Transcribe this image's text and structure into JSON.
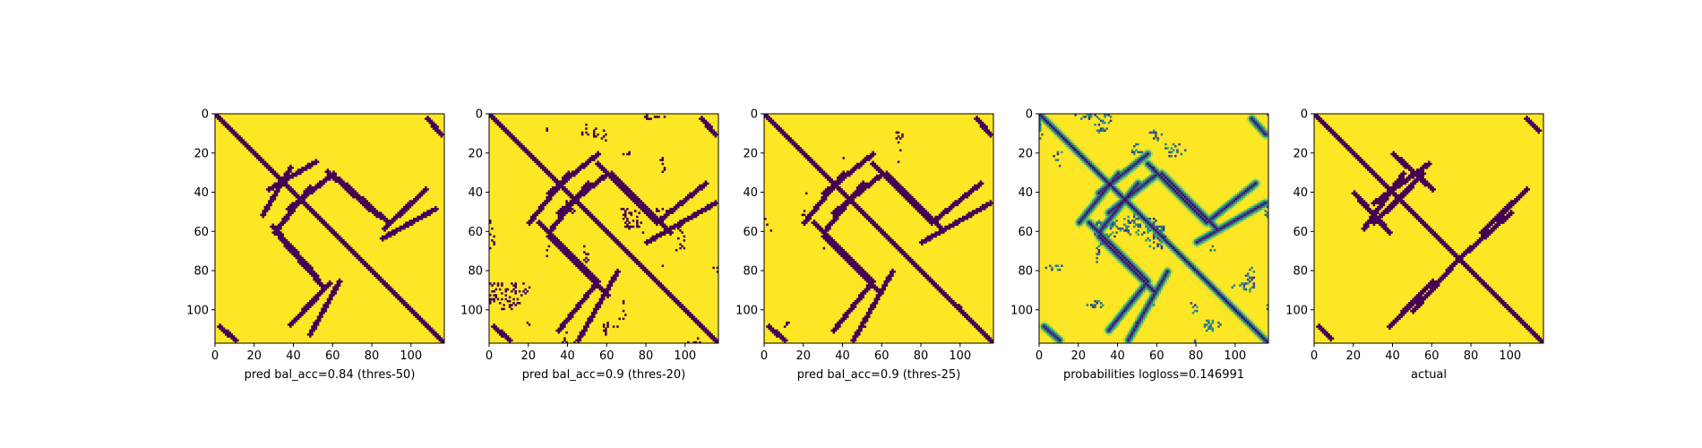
{
  "chart_data": [
    {
      "type": "heatmap",
      "xlabel": "pred bal_acc=0.84 (thres-50)",
      "colormap": "binary",
      "xticks": [
        0,
        20,
        40,
        60,
        80,
        100
      ],
      "yticks": [
        0,
        20,
        40,
        60,
        80,
        100
      ],
      "xlim": [
        0,
        117
      ],
      "ylim": [
        117,
        0
      ],
      "matrix_size": 117,
      "features": {
        "diagonal": true,
        "strands": [
          {
            "from": [
              24,
              51
            ],
            "to": [
              38,
              27
            ],
            "kind": "anti-diagonal"
          },
          {
            "from": [
              30,
              60
            ],
            "to": [
              48,
              37
            ],
            "kind": "anti-diagonal"
          },
          {
            "from": [
              57,
              29
            ],
            "to": [
              82,
              51
            ],
            "kind": "off-diagonal"
          },
          {
            "from": [
              63,
              33
            ],
            "to": [
              88,
              55
            ],
            "kind": "off-diagonal"
          },
          {
            "from": [
              86,
              58
            ],
            "to": [
              107,
              38
            ],
            "kind": "anti-diagonal"
          },
          {
            "from": [
              85,
              63
            ],
            "to": [
              112,
              48
            ],
            "kind": "anti-diagonal"
          },
          {
            "from": [
              108,
              2
            ],
            "to": [
              115,
              10
            ],
            "kind": "corner"
          },
          {
            "from": [
              2,
              108
            ],
            "to": [
              10,
              115
            ],
            "kind": "corner"
          }
        ],
        "speckle_level": 0.15
      }
    },
    {
      "type": "heatmap",
      "xlabel": "pred bal_acc=0.9 (thres-20)",
      "colormap": "binary",
      "xticks": [
        0,
        20,
        40,
        60,
        80,
        100
      ],
      "yticks": [
        0,
        20,
        40,
        60,
        80,
        100
      ],
      "xlim": [
        0,
        117
      ],
      "ylim": [
        117,
        0
      ],
      "matrix_size": 117,
      "features": {
        "diagonal": true,
        "strands": [
          {
            "from": [
              20,
              55
            ],
            "to": [
              40,
              30
            ],
            "kind": "anti-diagonal"
          },
          {
            "from": [
              30,
              60
            ],
            "to": [
              50,
              35
            ],
            "kind": "anti-diagonal"
          },
          {
            "from": [
              55,
              25
            ],
            "to": [
              85,
              55
            ],
            "kind": "off-diagonal"
          },
          {
            "from": [
              62,
              30
            ],
            "to": [
              92,
              60
            ],
            "kind": "off-diagonal"
          },
          {
            "from": [
              85,
              55
            ],
            "to": [
              110,
              35
            ],
            "kind": "anti-diagonal"
          },
          {
            "from": [
              80,
              65
            ],
            "to": [
              115,
              45
            ],
            "kind": "anti-diagonal"
          },
          {
            "from": [
              108,
              2
            ],
            "to": [
              115,
              10
            ],
            "kind": "corner"
          },
          {
            "from": [
              2,
              108
            ],
            "to": [
              10,
              115
            ],
            "kind": "corner"
          }
        ],
        "speckle_level": 0.55
      }
    },
    {
      "type": "heatmap",
      "xlabel": "pred bal_acc=0.9 (thres-25)",
      "colormap": "binary",
      "xticks": [
        0,
        20,
        40,
        60,
        80,
        100
      ],
      "yticks": [
        0,
        20,
        40,
        60,
        80,
        100
      ],
      "xlim": [
        0,
        117
      ],
      "ylim": [
        117,
        0
      ],
      "matrix_size": 117,
      "features": {
        "diagonal": true,
        "strands": [
          {
            "from": [
              20,
              55
            ],
            "to": [
              40,
              30
            ],
            "kind": "anti-diagonal"
          },
          {
            "from": [
              30,
              60
            ],
            "to": [
              50,
              35
            ],
            "kind": "anti-diagonal"
          },
          {
            "from": [
              55,
              25
            ],
            "to": [
              85,
              55
            ],
            "kind": "off-diagonal"
          },
          {
            "from": [
              62,
              30
            ],
            "to": [
              90,
              58
            ],
            "kind": "off-diagonal"
          },
          {
            "from": [
              85,
              55
            ],
            "to": [
              110,
              35
            ],
            "kind": "anti-diagonal"
          },
          {
            "from": [
              80,
              65
            ],
            "to": [
              115,
              45
            ],
            "kind": "anti-diagonal"
          },
          {
            "from": [
              108,
              2
            ],
            "to": [
              115,
              10
            ],
            "kind": "corner"
          },
          {
            "from": [
              2,
              108
            ],
            "to": [
              10,
              115
            ],
            "kind": "corner"
          }
        ],
        "speckle_level": 0.35
      }
    },
    {
      "type": "heatmap",
      "xlabel": "probabilities logloss=0.146991",
      "colormap": "viridis",
      "xticks": [
        0,
        20,
        40,
        60,
        80,
        100
      ],
      "yticks": [
        0,
        20,
        40,
        60,
        80,
        100
      ],
      "xlim": [
        0,
        117
      ],
      "ylim": [
        117,
        0
      ],
      "matrix_size": 117,
      "features": {
        "diagonal": true,
        "strands": [
          {
            "from": [
              20,
              55
            ],
            "to": [
              40,
              30
            ],
            "kind": "anti-diagonal"
          },
          {
            "from": [
              30,
              60
            ],
            "to": [
              50,
              35
            ],
            "kind": "anti-diagonal"
          },
          {
            "from": [
              55,
              25
            ],
            "to": [
              85,
              55
            ],
            "kind": "off-diagonal"
          },
          {
            "from": [
              62,
              30
            ],
            "to": [
              90,
              58
            ],
            "kind": "off-diagonal"
          },
          {
            "from": [
              85,
              55
            ],
            "to": [
              110,
              35
            ],
            "kind": "anti-diagonal"
          },
          {
            "from": [
              80,
              65
            ],
            "to": [
              115,
              45
            ],
            "kind": "anti-diagonal"
          },
          {
            "from": [
              108,
              2
            ],
            "to": [
              115,
              10
            ],
            "kind": "corner"
          },
          {
            "from": [
              2,
              108
            ],
            "to": [
              10,
              115
            ],
            "kind": "corner"
          }
        ],
        "speckle_level": 0.6
      }
    },
    {
      "type": "heatmap",
      "xlabel": "actual",
      "colormap": "binary",
      "xticks": [
        0,
        20,
        40,
        60,
        80,
        100
      ],
      "yticks": [
        0,
        20,
        40,
        60,
        80,
        100
      ],
      "xlim": [
        0,
        117
      ],
      "ylim": [
        117,
        0
      ],
      "matrix_size": 117,
      "features": {
        "diagonal": true,
        "strands": [
          {
            "from": [
              25,
              58
            ],
            "to": [
              45,
              30
            ],
            "kind": "anti-diagonal"
          },
          {
            "from": [
              30,
              55
            ],
            "to": [
              48,
              38
            ],
            "kind": "anti-diagonal"
          },
          {
            "from": [
              20,
              40
            ],
            "to": [
              38,
              60
            ],
            "kind": "off-diagonal"
          },
          {
            "from": [
              85,
              60
            ],
            "to": [
              108,
              38
            ],
            "kind": "anti-diagonal"
          },
          {
            "from": [
              75,
              72
            ],
            "to": [
              100,
              50
            ],
            "kind": "anti-diagonal"
          },
          {
            "from": [
              108,
              2
            ],
            "to": [
              114,
              8
            ],
            "kind": "corner"
          },
          {
            "from": [
              2,
              108
            ],
            "to": [
              8,
              114
            ],
            "kind": "corner"
          }
        ],
        "speckle_level": 0.05
      }
    }
  ],
  "colors": {
    "low": "#440154",
    "high": "#fde725",
    "viridis_stops": [
      "#440154",
      "#3b528b",
      "#21918c",
      "#5ec962",
      "#fde725"
    ],
    "axis": "#000000",
    "background": "#ffffff"
  }
}
